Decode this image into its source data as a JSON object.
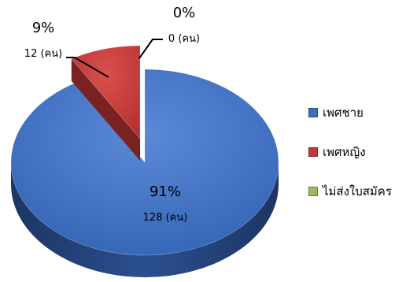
{
  "chart_data": {
    "type": "pie",
    "style": "3d-exploded",
    "categories": [
      "เพศชาย",
      "เพศหญิง",
      "ไม่ส่งใบสมัคร"
    ],
    "values": [
      128,
      12,
      0
    ],
    "percent_labels": [
      "91%",
      "9%",
      "0%"
    ],
    "count_labels": [
      "128 (คน)",
      "12 (คน)",
      "0 (คน)"
    ],
    "colors": [
      "#3d6fc0",
      "#c0373a",
      "#9bbb59"
    ],
    "legend_position": "right"
  }
}
